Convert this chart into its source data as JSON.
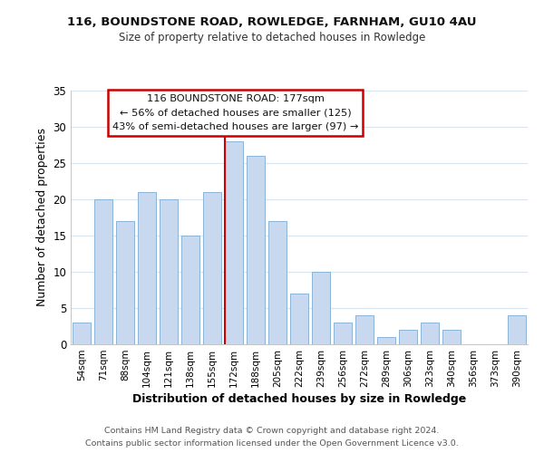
{
  "title": "116, BOUNDSTONE ROAD, ROWLEDGE, FARNHAM, GU10 4AU",
  "subtitle": "Size of property relative to detached houses in Rowledge",
  "xlabel": "Distribution of detached houses by size in Rowledge",
  "ylabel": "Number of detached properties",
  "bar_labels": [
    "54sqm",
    "71sqm",
    "88sqm",
    "104sqm",
    "121sqm",
    "138sqm",
    "155sqm",
    "172sqm",
    "188sqm",
    "205sqm",
    "222sqm",
    "239sqm",
    "256sqm",
    "272sqm",
    "289sqm",
    "306sqm",
    "323sqm",
    "340sqm",
    "356sqm",
    "373sqm",
    "390sqm"
  ],
  "bar_values": [
    3,
    20,
    17,
    21,
    20,
    15,
    21,
    28,
    26,
    17,
    7,
    10,
    3,
    4,
    1,
    2,
    3,
    2,
    0,
    0,
    4
  ],
  "bar_color": "#c8d8ee",
  "bar_edge_color": "#8ab4d8",
  "highlight_bar_index": 7,
  "highlight_color": "#cc0000",
  "ylim": [
    0,
    35
  ],
  "yticks": [
    0,
    5,
    10,
    15,
    20,
    25,
    30,
    35
  ],
  "annotation_title": "116 BOUNDSTONE ROAD: 177sqm",
  "annotation_line1": "← 56% of detached houses are smaller (125)",
  "annotation_line2": "43% of semi-detached houses are larger (97) →",
  "annotation_box_color": "#ffffff",
  "annotation_box_edge_color": "#cc0000",
  "footer_line1": "Contains HM Land Registry data © Crown copyright and database right 2024.",
  "footer_line2": "Contains public sector information licensed under the Open Government Licence v3.0.",
  "background_color": "#ffffff",
  "grid_color": "#d8e4f0"
}
